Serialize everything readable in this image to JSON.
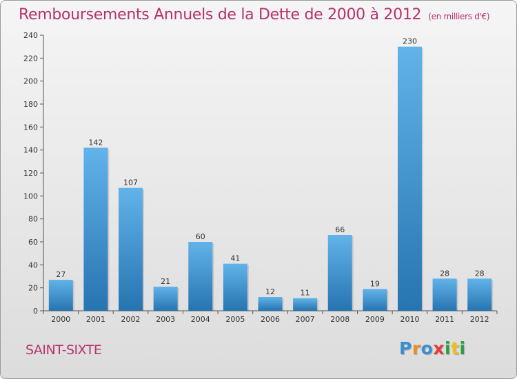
{
  "title": "Remboursements Annuels de la Dette de 2000 à 2012",
  "title_unit": "(en milliers d'€)",
  "commune": "SAINT-SIXTE",
  "logo": {
    "text": "Proxiti",
    "colors": [
      "#3a8fd0",
      "#e8901c",
      "#3a8fd0",
      "#e83a3a",
      "#2aa040",
      "#e8c020",
      "#2aa040"
    ]
  },
  "colors": {
    "title": "#b8316c",
    "bar_top": "#62b3ea",
    "bar_bottom": "#2674b0"
  },
  "chart_data": {
    "type": "bar",
    "title": "Remboursements Annuels de la Dette de 2000 à 2012",
    "categories": [
      "2000",
      "2001",
      "2002",
      "2003",
      "2004",
      "2005",
      "2006",
      "2007",
      "2008",
      "2009",
      "2010",
      "2011",
      "2012"
    ],
    "values": [
      27,
      142,
      107,
      21,
      60,
      41,
      12,
      11,
      66,
      19,
      230,
      28,
      28
    ],
    "ylim": [
      0,
      240
    ],
    "yticks": [
      0,
      20,
      40,
      60,
      80,
      100,
      120,
      140,
      160,
      180,
      200,
      220,
      240
    ],
    "grid": false,
    "data_labels": true
  }
}
